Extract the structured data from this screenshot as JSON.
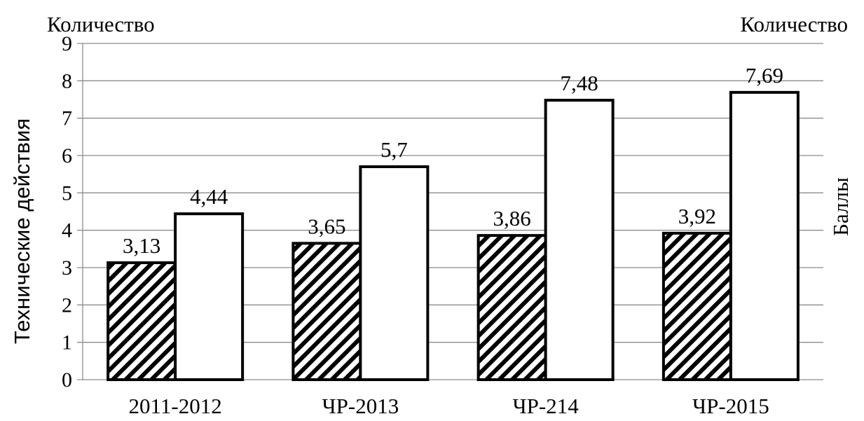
{
  "chart_data": {
    "type": "bar",
    "categories": [
      "2011-2012",
      "ЧР-2013",
      "ЧР-214",
      "ЧР-2015"
    ],
    "series": [
      {
        "values": [
          3.13,
          3.65,
          3.86,
          3.92
        ],
        "pattern": "diagonal-hatch",
        "axis": "left"
      },
      {
        "values": [
          4.44,
          5.7,
          7.48,
          7.69
        ],
        "pattern": "white",
        "axis": "right"
      }
    ],
    "data_labels": [
      [
        "3,13",
        "3,65",
        "3,86",
        "3,92"
      ],
      [
        "4,44",
        "5,7",
        "7,48",
        "7,69"
      ]
    ],
    "y_ticks": [
      "0",
      "1",
      "2",
      "3",
      "4",
      "5",
      "6",
      "7",
      "8",
      "9"
    ],
    "ylim": [
      0,
      9
    ],
    "left_top_label": "Количество",
    "right_top_label": "Количество",
    "ylabel_left": "Технические действия",
    "ylabel_right": "Баллы",
    "grid": true,
    "legend": "none",
    "colors": {
      "bar_stroke": "#000000",
      "fill_white": "#ffffff",
      "grid": "#8c8c8c"
    }
  }
}
